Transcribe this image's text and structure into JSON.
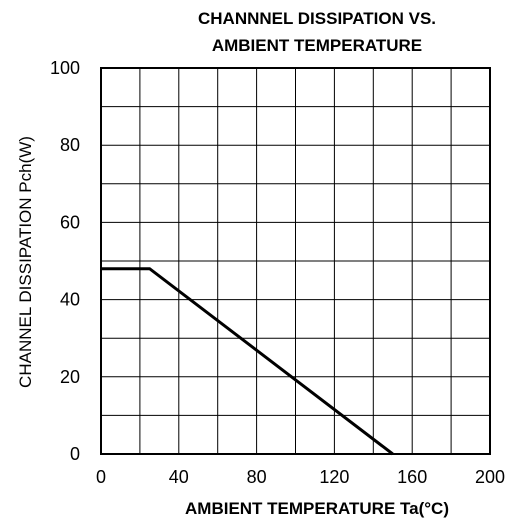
{
  "chart_data": {
    "type": "line",
    "title_lines": [
      "CHANNNEL DISSIPATION VS.",
      "AMBIENT TEMPERATURE"
    ],
    "xlabel": "AMBIENT TEMPERATURE Ta(°C)",
    "ylabel": "CHANNEL DISSIPATION Pch(W)",
    "xlim": [
      0,
      200
    ],
    "ylim": [
      0,
      100
    ],
    "x_ticks": [
      0,
      40,
      80,
      120,
      160,
      200
    ],
    "y_ticks": [
      0,
      20,
      40,
      60,
      80,
      100
    ],
    "x_minor_step": 20,
    "y_minor_step": 10,
    "grid": true,
    "series": [
      {
        "x": [
          0,
          25,
          150
        ],
        "y": [
          48,
          48,
          0
        ],
        "color": "#000000"
      }
    ]
  }
}
